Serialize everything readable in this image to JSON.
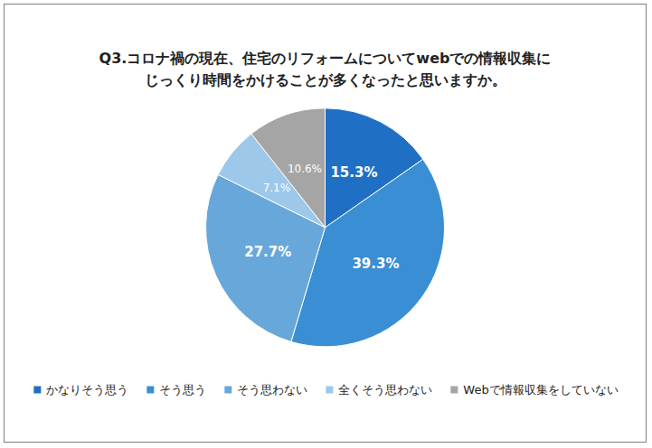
{
  "chart_data": {
    "type": "pie",
    "title": "Q3.コロナ禍の現在、住宅のリフォームについてwebでの情報収集に\nじっくり時間をかけることが多くなったと思いますか。",
    "categories": [
      "かなりそう思う",
      "そう思う",
      "そう思わない",
      "全くそう思わない",
      "Webで情報収集をしていない"
    ],
    "values": [
      15.3,
      39.3,
      27.7,
      7.1,
      10.6
    ],
    "value_labels": [
      "15.3%",
      "39.3%",
      "27.7%",
      "7.1%",
      "10.6%"
    ],
    "colors": [
      "#1f70c4",
      "#3a8ed3",
      "#68a7da",
      "#9ec8ea",
      "#a5a5a5"
    ],
    "data_labels": true,
    "legend": "bottom"
  }
}
